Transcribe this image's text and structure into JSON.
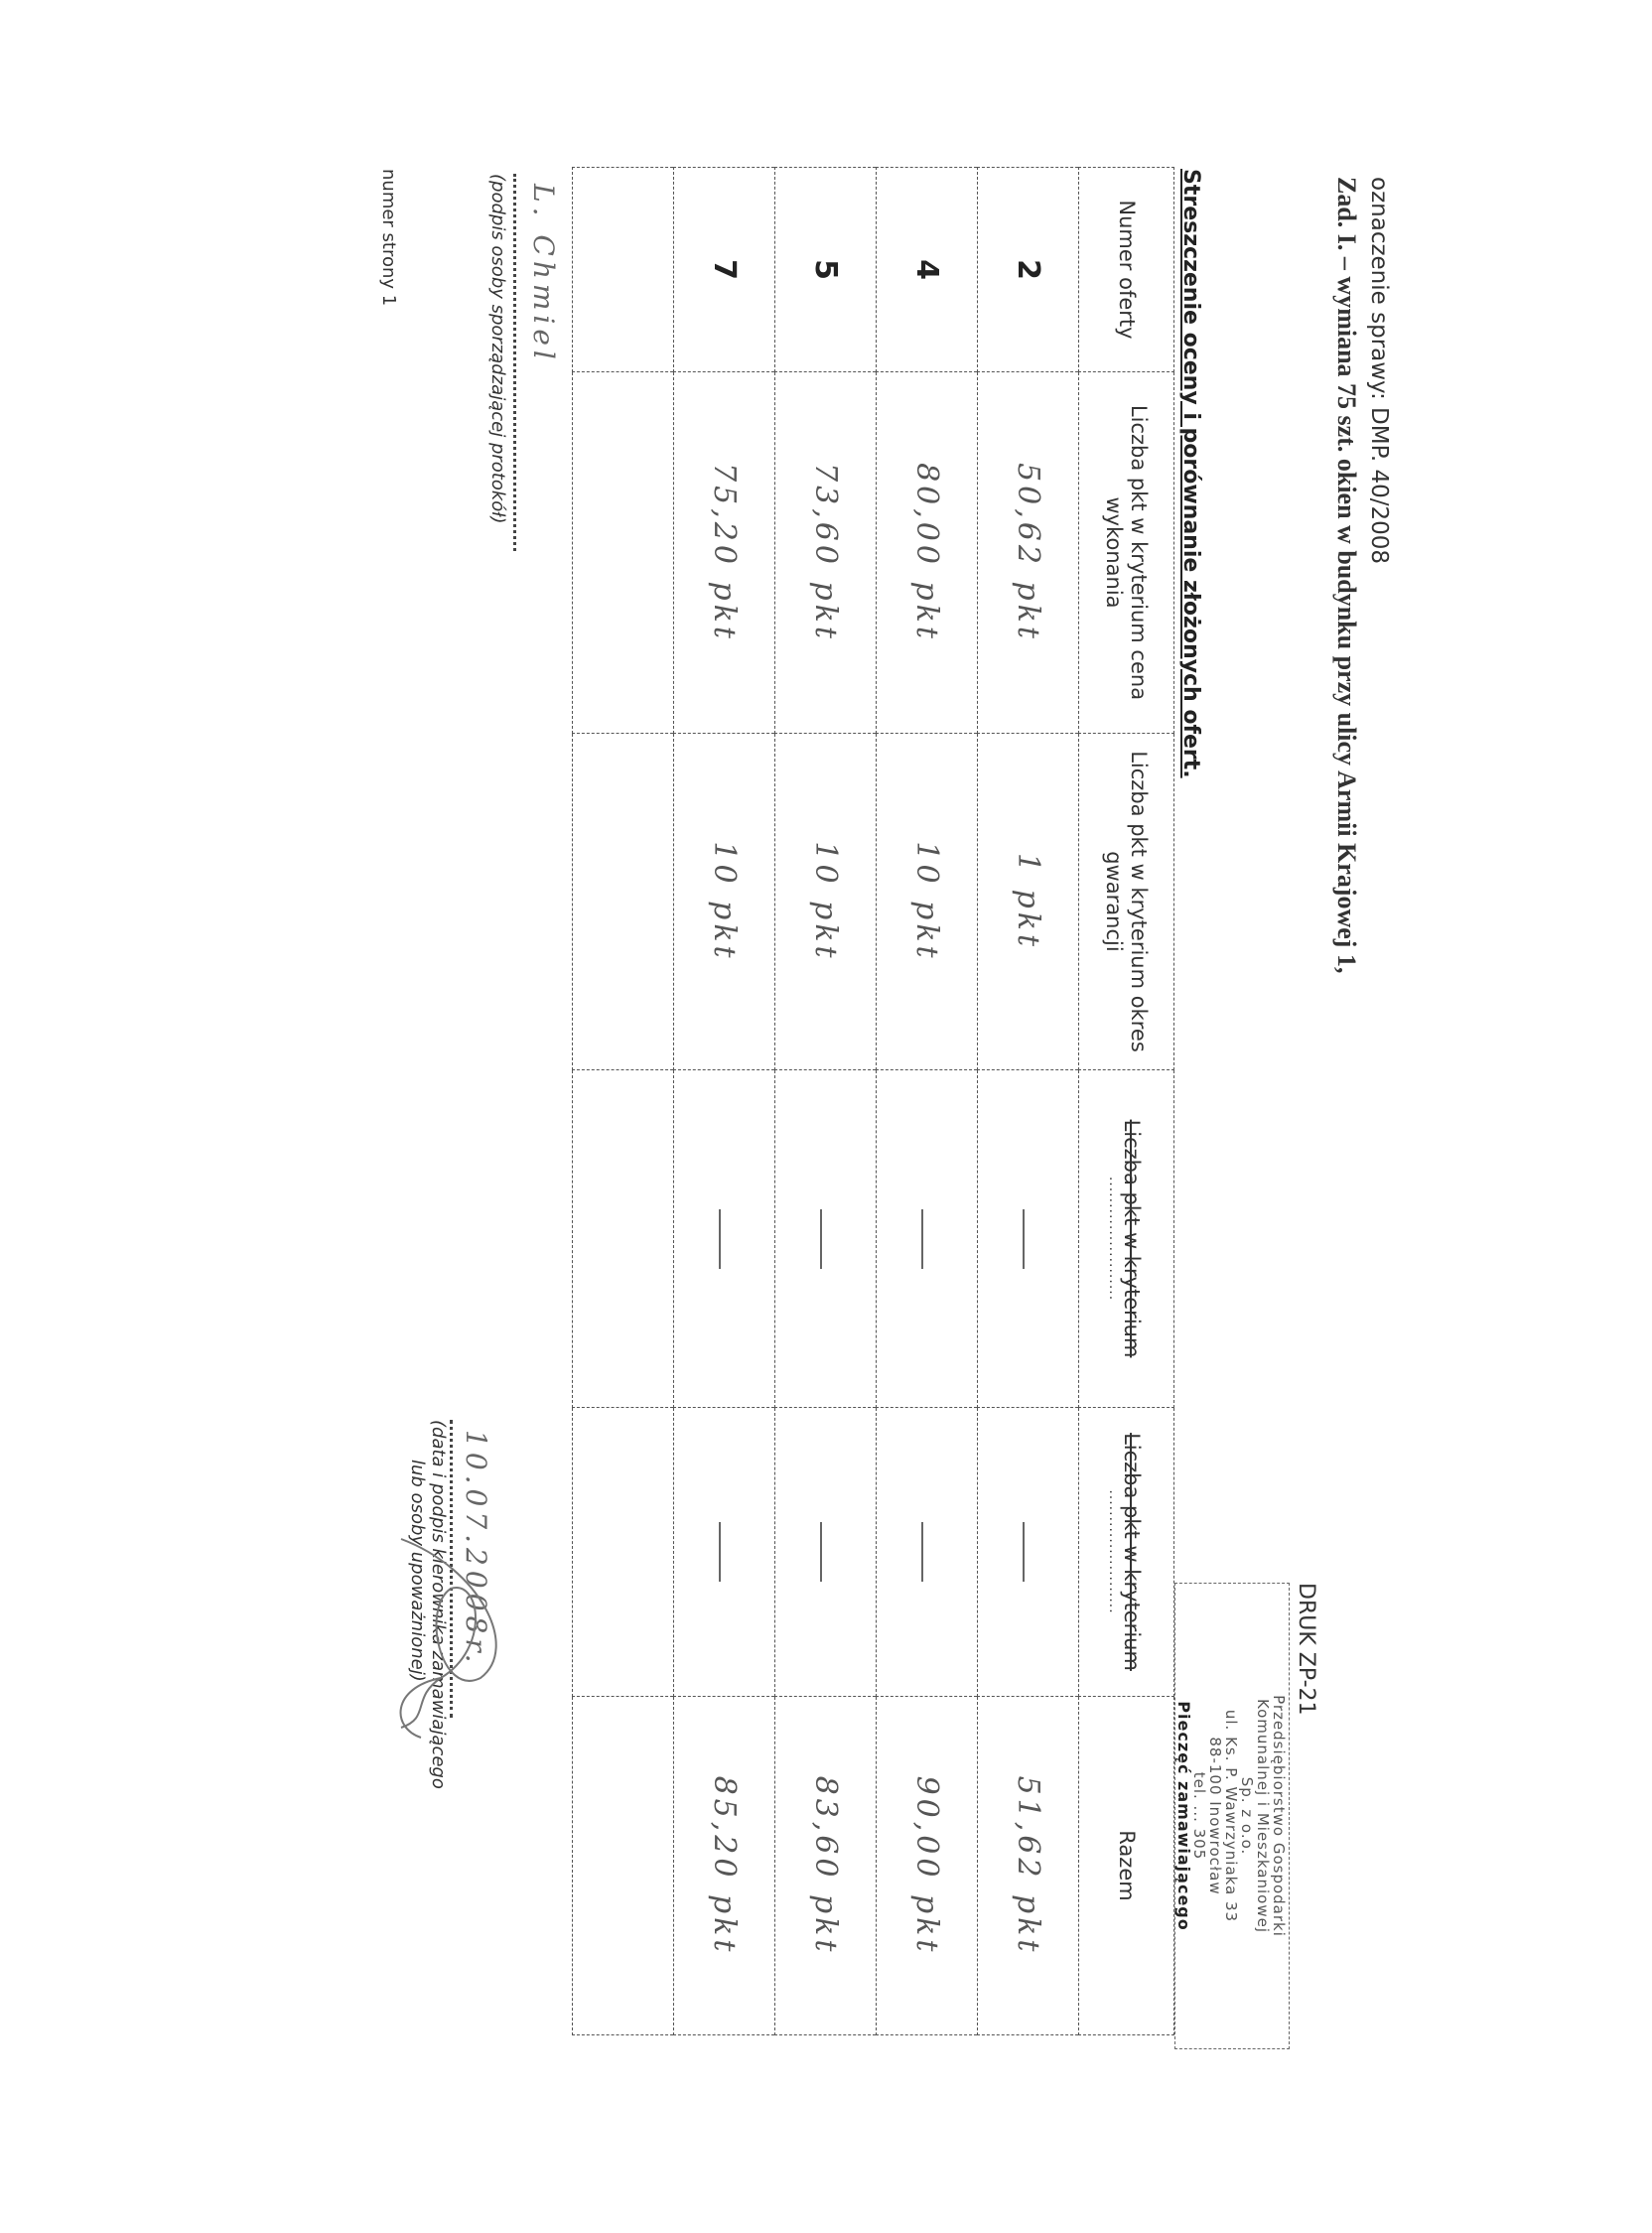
{
  "header": {
    "case_ref": "oznaczenie sprawy: DMP. 40/2008",
    "title": "Zad. I. – wymiana 75 szt. okien w budynku przy ulicy Armii Krajowej 1,",
    "subtitle": "Streszczenie oceny i porównanie złożonych ofert."
  },
  "stamp": {
    "form_code": "DRUK ZP-21",
    "lines": [
      "Przedsiębiorstwo Gospodarki",
      "Komunalnej i Mieszkaniowej",
      "Sp. z o.o.",
      "ul. Ks. P. Wawrzyniaka 33",
      "88-100 Inowrocław",
      "tel. ... 305"
    ],
    "caption": "Pieczęć zamawiającego"
  },
  "table": {
    "columns": [
      {
        "label": "Numer oferty"
      },
      {
        "label": "Liczba pkt w kryterium cena wykonania"
      },
      {
        "label": "Liczba pkt w kryterium okres gwarancji"
      },
      {
        "label": "Liczba pkt w kryterium",
        "struck": true,
        "dots": "......................."
      },
      {
        "label": "Liczba pkt w kryterium",
        "struck": true,
        "dots": "......................."
      },
      {
        "label": "Razem"
      }
    ],
    "rows": [
      {
        "offer": "2",
        "price": "50,62 pkt",
        "warranty": "1 pkt",
        "c4": "—",
        "c5": "—",
        "total": "51,62 pkt"
      },
      {
        "offer": "4",
        "price": "80,00 pkt",
        "warranty": "10 pkt",
        "c4": "—",
        "c5": "—",
        "total": "90,00 pkt"
      },
      {
        "offer": "5",
        "price": "73,60 pkt",
        "warranty": "10 pkt",
        "c4": "—",
        "c5": "—",
        "total": "83,60 pkt"
      },
      {
        "offer": "7",
        "price": "75,20 pkt",
        "warranty": "10 pkt",
        "c4": "—",
        "c5": "—",
        "total": "85,20 pkt"
      }
    ]
  },
  "footer": {
    "left_signature": "L. Chmiel",
    "left_label": "(podpis osoby sporządzającej protokół)",
    "right_date": "10.07.2008r.",
    "right_label_1": "(data i podpis kierownika zamawiającego",
    "right_label_2": "lub osoby upoważnionej)",
    "page_number": "numer strony 1"
  }
}
